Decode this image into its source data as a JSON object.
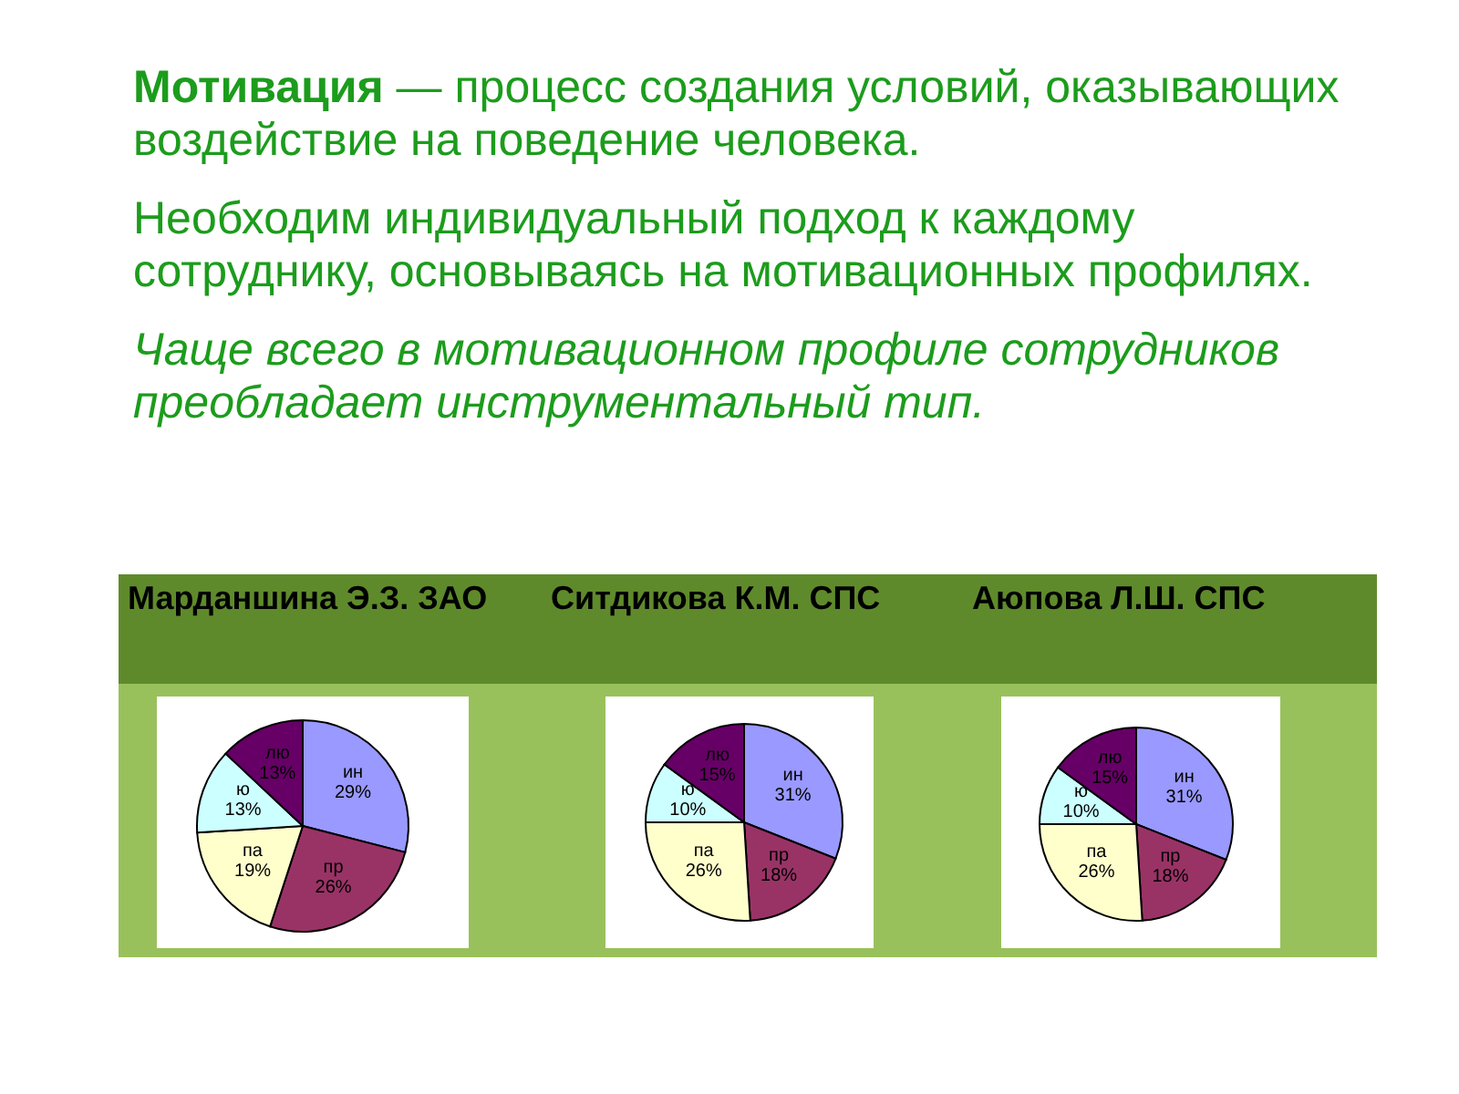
{
  "chart_data": [
    {
      "type": "other",
      "annotations": [
        "Мотивация — процесс создания условий, оказывающих воздействие на поведение человека.",
        "Необходим индивидуальный подход к каждому сотруднику, основываясь на мотивационных профилях.",
        "Чаще всего в мотивационном профиле сотрудников преобладает инструментальный тип."
      ]
    },
    {
      "type": "pie",
      "title": "Марданшина Э.З. ЗАО",
      "categories": [
        "ин",
        "пр",
        "па",
        "ю",
        "лю"
      ],
      "values": [
        29,
        26,
        19,
        13,
        13
      ],
      "colors": [
        "#9999ff",
        "#993366",
        "#ffffcc",
        "#ccffff",
        "#660066"
      ],
      "value_labels": [
        "29%",
        "26%",
        "19%",
        "13%",
        "13%"
      ]
    },
    {
      "type": "pie",
      "title": "Ситдикова К.М. СПС",
      "categories": [
        "ин",
        "пр",
        "па",
        "ю",
        "лю"
      ],
      "values": [
        31,
        18,
        26,
        10,
        15
      ],
      "colors": [
        "#9999ff",
        "#993366",
        "#ffffcc",
        "#ccffff",
        "#660066"
      ],
      "value_labels": [
        "31%",
        "18%",
        "26%",
        "10%",
        "15%"
      ]
    },
    {
      "type": "pie",
      "title": "Аюпова Л.Ш. СПС",
      "categories": [
        "ин",
        "пр",
        "па",
        "ю",
        "лю"
      ],
      "values": [
        31,
        18,
        26,
        10,
        15
      ],
      "colors": [
        "#9999ff",
        "#993366",
        "#ffffcc",
        "#ccffff",
        "#660066"
      ],
      "value_labels": [
        "31%",
        "18%",
        "26%",
        "10%",
        "15%"
      ]
    }
  ]
}
